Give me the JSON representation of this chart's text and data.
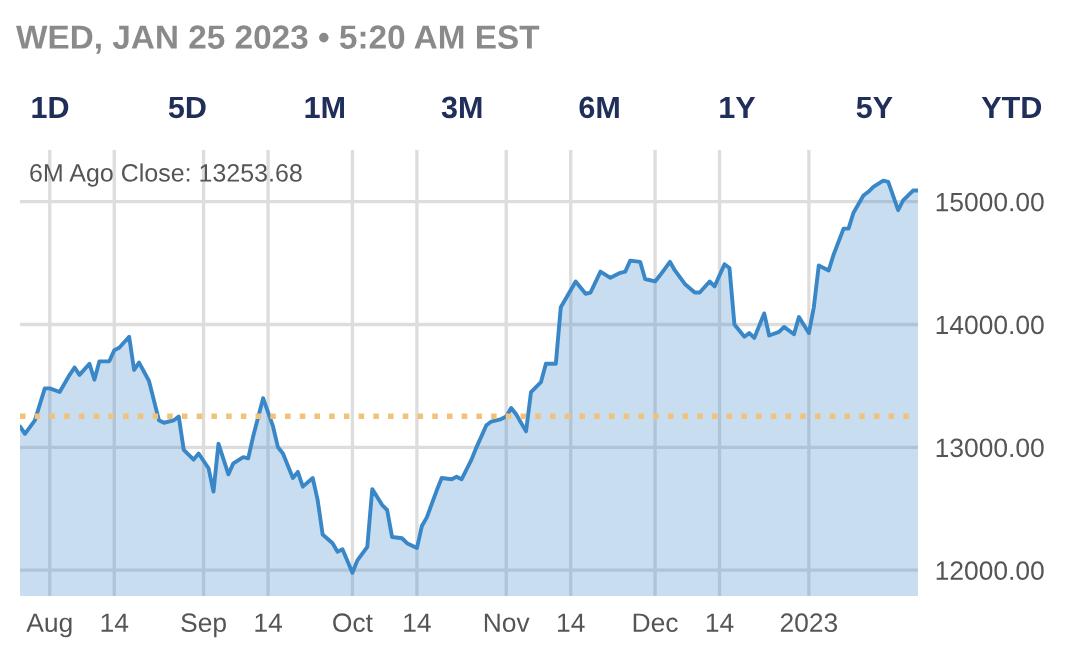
{
  "chart_data": {
    "type": "area",
    "title": "WED, JAN 25 2023 • 5:20 AM EST",
    "annotations": [
      "1D",
      "5D",
      "1M",
      "3M",
      "6M",
      "1Y",
      "5Y",
      "YTD",
      "6M Ago Close: 13253.68"
    ],
    "x": [
      "2022-07-26",
      "2022-07-27",
      "2022-07-29",
      "2022-07-31",
      "2022-08-01",
      "2022-08-03",
      "2022-08-05",
      "2022-08-06",
      "2022-08-07",
      "2022-08-09",
      "2022-08-10",
      "2022-08-11",
      "2022-08-13",
      "2022-08-14",
      "2022-08-15",
      "2022-08-17",
      "2022-08-18",
      "2022-08-19",
      "2022-08-21",
      "2022-08-23",
      "2022-08-24",
      "2022-08-26",
      "2022-08-27",
      "2022-08-28",
      "2022-08-30",
      "2022-08-31",
      "2022-09-02",
      "2022-09-03",
      "2022-09-04",
      "2022-09-06",
      "2022-09-07",
      "2022-09-09",
      "2022-09-10",
      "2022-09-11",
      "2022-09-13",
      "2022-09-15",
      "2022-09-16",
      "2022-09-17",
      "2022-09-19",
      "2022-09-20",
      "2022-09-21",
      "2022-09-23",
      "2022-09-24",
      "2022-09-25",
      "2022-09-27",
      "2022-09-28",
      "2022-09-29",
      "2022-10-01",
      "2022-10-02",
      "2022-10-04",
      "2022-10-05",
      "2022-10-07",
      "2022-10-08",
      "2022-10-09",
      "2022-10-11",
      "2022-10-12",
      "2022-10-14",
      "2022-10-15",
      "2022-10-16",
      "2022-10-18",
      "2022-10-19",
      "2022-10-21",
      "2022-10-22",
      "2022-10-23",
      "2022-10-25",
      "2022-10-26",
      "2022-10-28",
      "2022-10-29",
      "2022-10-31",
      "2022-11-01",
      "2022-11-02",
      "2022-11-03",
      "2022-11-05",
      "2022-11-06",
      "2022-11-08",
      "2022-11-09",
      "2022-11-11",
      "2022-11-12",
      "2022-11-13",
      "2022-11-15",
      "2022-11-17",
      "2022-11-18",
      "2022-11-20",
      "2022-11-22",
      "2022-11-24",
      "2022-11-25",
      "2022-11-26",
      "2022-11-28",
      "2022-11-29",
      "2022-12-01",
      "2022-12-02",
      "2022-12-04",
      "2022-12-05",
      "2022-12-07",
      "2022-12-09",
      "2022-12-10",
      "2022-12-12",
      "2022-12-13",
      "2022-12-15",
      "2022-12-16",
      "2022-12-17",
      "2022-12-19",
      "2022-12-20",
      "2022-12-21",
      "2022-12-23",
      "2022-12-24",
      "2022-12-26",
      "2022-12-27",
      "2022-12-29",
      "2022-12-30",
      "2023-01-01",
      "2023-01-02",
      "2023-01-03",
      "2023-01-05",
      "2023-01-06",
      "2023-01-08",
      "2023-01-09",
      "2023-01-10",
      "2023-01-12",
      "2023-01-13",
      "2023-01-14",
      "2023-01-16",
      "2023-01-17",
      "2023-01-19",
      "2023-01-20",
      "2023-01-22",
      "2023-01-23"
    ],
    "series": [
      {
        "color": "#3a87c8",
        "values": [
          13170,
          13110,
          13220,
          13480,
          13480,
          13450,
          13590,
          13650,
          13590,
          13680,
          13550,
          13700,
          13700,
          13790,
          13810,
          13900,
          13630,
          13690,
          13540,
          13220,
          13200,
          13220,
          13250,
          12980,
          12900,
          12950,
          12830,
          12640,
          13030,
          12780,
          12870,
          12920,
          12910,
          13090,
          13400,
          13170,
          13000,
          12950,
          12750,
          12800,
          12680,
          12750,
          12570,
          12290,
          12220,
          12150,
          12170,
          11980,
          12080,
          12190,
          12660,
          12530,
          12490,
          12270,
          12260,
          12220,
          12180,
          12360,
          12430,
          12650,
          12750,
          12740,
          12760,
          12740,
          12900,
          13000,
          13180,
          13210,
          13230,
          13250,
          13320,
          13270,
          13130,
          13450,
          13530,
          13680,
          13680,
          14140,
          14210,
          14350,
          14250,
          14260,
          14430,
          14380,
          14420,
          14430,
          14520,
          14510,
          14370,
          14350,
          14400,
          14510,
          14440,
          14330,
          14260,
          14260,
          14350,
          14310,
          14490,
          14460,
          14000,
          13900,
          13930,
          13890,
          14090,
          13910,
          13940,
          13980,
          13920,
          14060,
          13930,
          14140,
          14480,
          14440,
          14570,
          14780,
          14780,
          14910,
          15050,
          15080,
          15120,
          15170,
          15160,
          14930,
          15010,
          15090,
          15090
        ]
      }
    ],
    "xlim": [
      "2022-07-26",
      "2023-01-23"
    ],
    "xticks": [
      {
        "value": "2022-08-01",
        "label": "Aug"
      },
      {
        "value": "2022-08-14",
        "label": "14"
      },
      {
        "value": "2022-09-01",
        "label": "Sep"
      },
      {
        "value": "2022-09-14",
        "label": "14"
      },
      {
        "value": "2022-10-01",
        "label": "Oct"
      },
      {
        "value": "2022-10-14",
        "label": "14"
      },
      {
        "value": "2022-11-01",
        "label": "Nov"
      },
      {
        "value": "2022-11-14",
        "label": "14"
      },
      {
        "value": "2022-12-01",
        "label": "Dec"
      },
      {
        "value": "2022-12-14",
        "label": "14"
      },
      {
        "value": "2023-01-01",
        "label": "2023"
      }
    ],
    "ylim": [
      11790,
      15420
    ],
    "yticks": [
      {
        "value": 12000,
        "label": "12000.00"
      },
      {
        "value": 13000,
        "label": "13000.00"
      },
      {
        "value": 14000,
        "label": "14000.00"
      },
      {
        "value": 15000,
        "label": "15000.00"
      }
    ],
    "ref_lines": [
      {
        "axis": "y",
        "value": 13253.68,
        "color": "#f2c27a",
        "line_style": "dotted"
      }
    ],
    "grid": true
  }
}
